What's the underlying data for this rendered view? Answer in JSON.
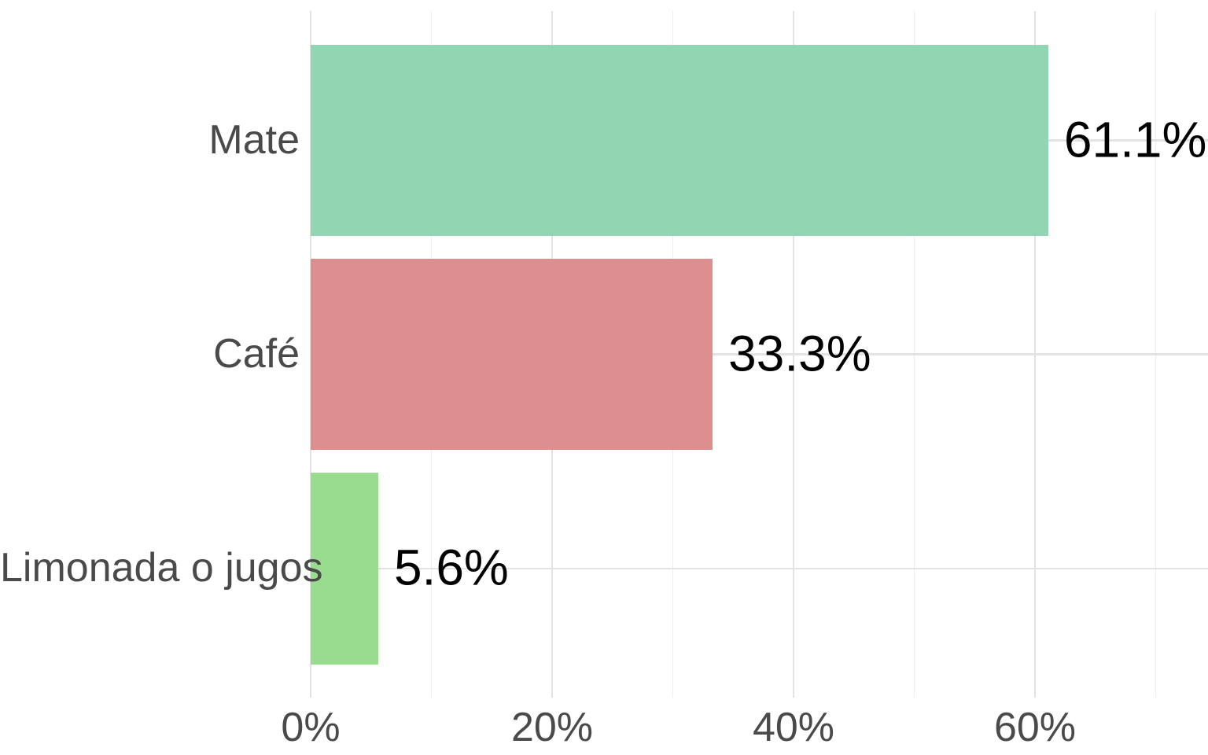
{
  "chart_data": {
    "type": "bar",
    "orientation": "horizontal",
    "title": "",
    "xlabel": "",
    "ylabel": "",
    "legend": "none",
    "categories": [
      "Mate",
      "Café",
      "Limonada o jugos"
    ],
    "values": [
      61.1,
      33.3,
      5.6
    ],
    "value_labels": [
      "61.1%",
      "33.3%",
      "5.6%"
    ],
    "bar_colors": [
      "#92D5B3",
      "#DD8F8F",
      "#99DC8F"
    ],
    "x_ticks": [
      {
        "value": 0,
        "label": "0%"
      },
      {
        "value": 20,
        "label": "20%"
      },
      {
        "value": 40,
        "label": "40%"
      },
      {
        "value": 60,
        "label": "60%"
      }
    ],
    "x_minor_ticks": [
      10,
      30,
      50,
      70
    ],
    "xlim": [
      0,
      74.3
    ],
    "grid": "major-and-minor",
    "colors": {
      "grid_major": "#e3e3e3",
      "grid_minor": "#efefef",
      "axis_text": "#4a4a4a",
      "value_text": "#000000",
      "background": "#ffffff"
    }
  }
}
